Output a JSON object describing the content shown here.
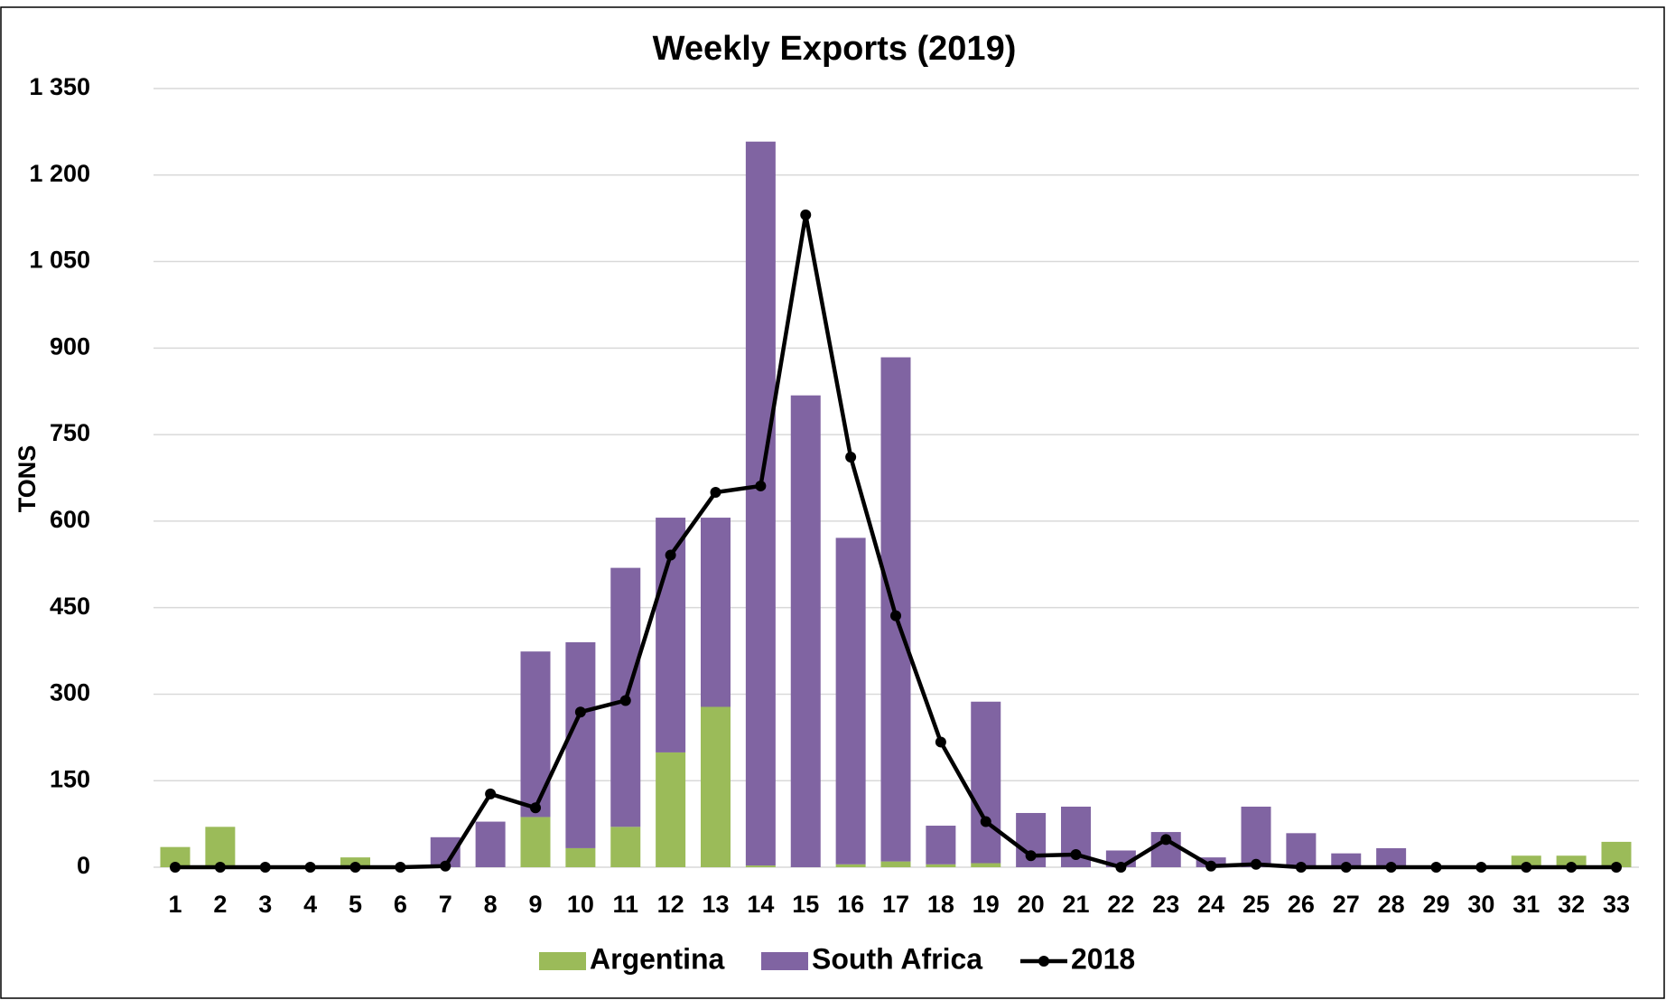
{
  "chart_data": {
    "type": "bar_line",
    "title": "Weekly Exports (2019)",
    "y_label": "TONS",
    "categories": [
      "1",
      "2",
      "3",
      "4",
      "5",
      "6",
      "7",
      "8",
      "9",
      "10",
      "11",
      "12",
      "13",
      "14",
      "15",
      "16",
      "17",
      "18",
      "19",
      "20",
      "21",
      "22",
      "23",
      "24",
      "25",
      "26",
      "27",
      "28",
      "29",
      "30",
      "31",
      "32",
      "33"
    ],
    "series": [
      {
        "name": "Argentina",
        "type": "bar",
        "color": "#9bbb59",
        "values": [
          35,
          70,
          0,
          0,
          17,
          0,
          0,
          0,
          87,
          33,
          70,
          199,
          278,
          3,
          0,
          5,
          10,
          5,
          7,
          0,
          0,
          0,
          0,
          0,
          0,
          0,
          0,
          0,
          0,
          0,
          20,
          20,
          44
        ]
      },
      {
        "name": "South Africa",
        "type": "bar",
        "color": "#8064a2",
        "values": [
          0,
          0,
          0,
          0,
          0,
          0,
          52,
          79,
          287,
          357,
          449,
          407,
          328,
          1255,
          818,
          566,
          874,
          67,
          280,
          94,
          105,
          29,
          61,
          17,
          105,
          59,
          24,
          33,
          0,
          0,
          0,
          0,
          0
        ]
      },
      {
        "name": "2018",
        "type": "line",
        "color": "#000000",
        "values": [
          0,
          0,
          0,
          0,
          0,
          0,
          2,
          127,
          103,
          269,
          289,
          541,
          650,
          661,
          1131,
          711,
          436,
          217,
          79,
          20,
          22,
          0,
          48,
          2,
          5,
          0,
          0,
          0,
          0,
          0,
          0,
          0,
          0
        ]
      }
    ],
    "stacked": true,
    "ylim": [
      0,
      1350
    ],
    "yticks": [
      0,
      150,
      300,
      450,
      600,
      750,
      900,
      {
        "value": 1050,
        "label": "1 050"
      },
      {
        "value": 1200,
        "label": "1 200"
      },
      {
        "value": 1350,
        "label": "1 350"
      }
    ],
    "grid": true,
    "legend": "bottom"
  }
}
